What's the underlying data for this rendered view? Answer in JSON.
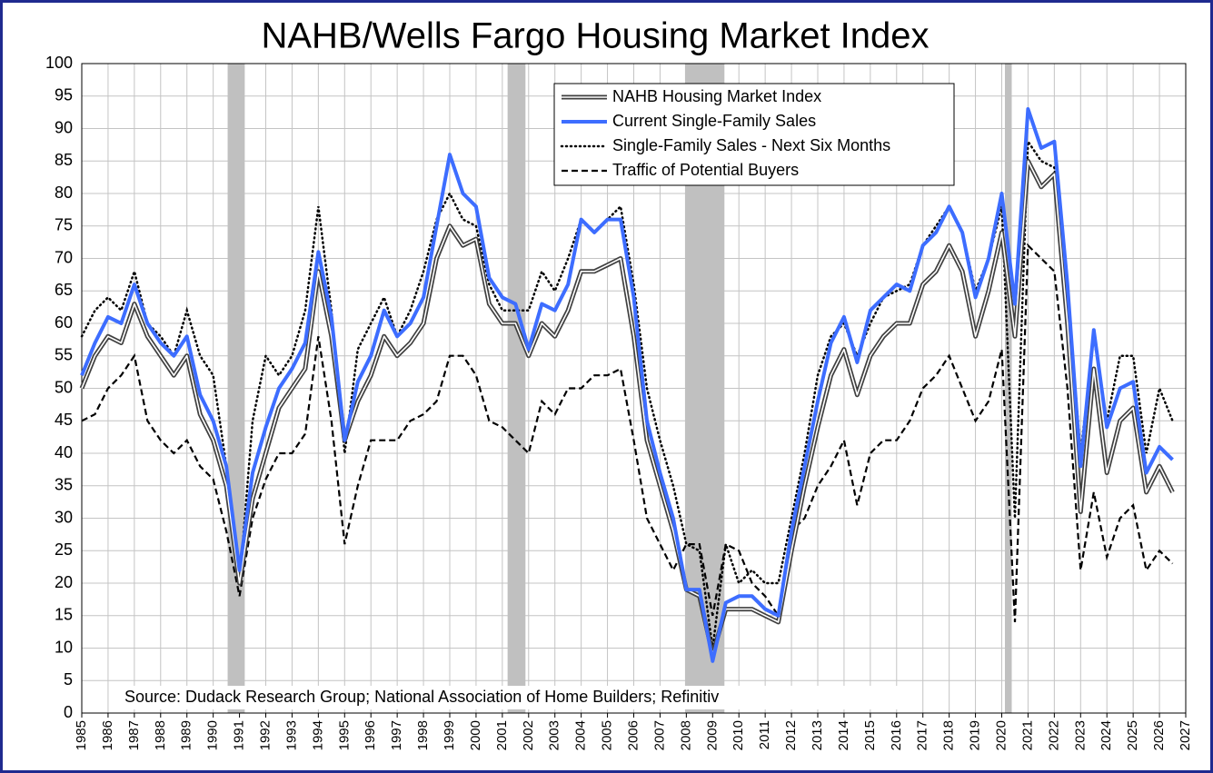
{
  "chart_data": {
    "type": "line",
    "title": "NAHB/Wells Fargo Housing Market Index",
    "annotation": "Source: Dudack Research Group; National Association of Home Builders; Refinitiv",
    "x": [
      1985,
      1985.5,
      1986,
      1986.5,
      1987,
      1987.5,
      1988,
      1988.5,
      1989,
      1989.5,
      1990,
      1990.5,
      1991,
      1991.5,
      1992,
      1992.5,
      1993,
      1993.5,
      1994,
      1994.5,
      1995,
      1995.5,
      1996,
      1996.5,
      1997,
      1997.5,
      1998,
      1998.5,
      1999,
      1999.5,
      2000,
      2000.5,
      2001,
      2001.5,
      2002,
      2002.5,
      2003,
      2003.5,
      2004,
      2004.5,
      2005,
      2005.5,
      2006,
      2006.5,
      2007,
      2007.5,
      2008,
      2008.5,
      2009,
      2009.5,
      2010,
      2010.5,
      2011,
      2011.5,
      2012,
      2012.5,
      2013,
      2013.5,
      2014,
      2014.5,
      2015,
      2015.5,
      2016,
      2016.5,
      2017,
      2017.5,
      2018,
      2018.5,
      2019,
      2019.5,
      2020,
      2020.5,
      2021,
      2021.5,
      2022,
      2022.5,
      2023,
      2023.5,
      2024,
      2024.5,
      2025,
      2025.5,
      2026,
      2026.5
    ],
    "series": [
      {
        "name": "NAHB Housing Market Index",
        "color": "#404040",
        "style": "double",
        "values": [
          50,
          55,
          58,
          57,
          63,
          58,
          55,
          52,
          55,
          46,
          42,
          35,
          20,
          33,
          40,
          47,
          50,
          53,
          68,
          58,
          42,
          48,
          52,
          58,
          55,
          57,
          60,
          70,
          75,
          72,
          73,
          63,
          60,
          60,
          55,
          60,
          58,
          62,
          68,
          68,
          69,
          70,
          58,
          42,
          35,
          28,
          19,
          18,
          9,
          16,
          16,
          16,
          15,
          14,
          25,
          35,
          44,
          52,
          56,
          49,
          55,
          58,
          60,
          60,
          66,
          68,
          72,
          68,
          58,
          65,
          74,
          58,
          85,
          81,
          83,
          60,
          31,
          53,
          37,
          45,
          47,
          34,
          38,
          34
        ]
      },
      {
        "name": "Current Single-Family Sales",
        "color": "#3d6dff",
        "style": "solid",
        "values": [
          52,
          57,
          61,
          60,
          66,
          60,
          57,
          55,
          58,
          49,
          45,
          38,
          22,
          37,
          44,
          50,
          53,
          57,
          71,
          61,
          42,
          51,
          55,
          62,
          58,
          60,
          64,
          75,
          86,
          80,
          78,
          67,
          64,
          63,
          56,
          63,
          62,
          66,
          76,
          74,
          76,
          76,
          64,
          45,
          37,
          30,
          19,
          19,
          8,
          17,
          18,
          18,
          16,
          15,
          28,
          38,
          48,
          57,
          61,
          54,
          62,
          64,
          66,
          65,
          72,
          74,
          78,
          74,
          64,
          70,
          80,
          63,
          93,
          87,
          88,
          66,
          38,
          59,
          44,
          50,
          51,
          37,
          41,
          39
        ]
      },
      {
        "name": "Single-Family Sales - Next Six Months",
        "color": "#000000",
        "style": "dotted",
        "values": [
          58,
          62,
          64,
          62,
          68,
          60,
          58,
          55,
          62,
          55,
          52,
          38,
          20,
          45,
          55,
          52,
          55,
          62,
          78,
          62,
          40,
          56,
          60,
          64,
          58,
          62,
          68,
          76,
          80,
          76,
          75,
          66,
          62,
          62,
          62,
          68,
          65,
          70,
          76,
          74,
          76,
          78,
          66,
          50,
          42,
          35,
          26,
          25,
          10,
          26,
          20,
          22,
          20,
          20,
          30,
          40,
          52,
          58,
          60,
          55,
          60,
          64,
          65,
          66,
          72,
          75,
          78,
          74,
          65,
          70,
          78,
          30,
          88,
          85,
          84,
          65,
          40,
          58,
          45,
          55,
          55,
          40,
          50,
          45
        ]
      },
      {
        "name": "Traffic of Potential Buyers",
        "color": "#000000",
        "style": "dashed",
        "values": [
          45,
          46,
          50,
          52,
          55,
          45,
          42,
          40,
          42,
          38,
          36,
          28,
          18,
          30,
          36,
          40,
          40,
          43,
          58,
          45,
          26,
          35,
          42,
          42,
          42,
          45,
          46,
          48,
          55,
          55,
          52,
          45,
          44,
          42,
          40,
          48,
          46,
          50,
          50,
          52,
          52,
          53,
          42,
          30,
          26,
          22,
          26,
          26,
          15,
          26,
          25,
          20,
          18,
          15,
          28,
          30,
          35,
          38,
          42,
          32,
          40,
          42,
          42,
          45,
          50,
          52,
          55,
          50,
          45,
          48,
          56,
          14,
          72,
          70,
          68,
          50,
          22,
          34,
          24,
          30,
          32,
          22,
          25,
          23
        ]
      }
    ],
    "shaded_periods": [
      [
        1990.55,
        1991.2
      ],
      [
        2001.2,
        2001.88
      ],
      [
        2007.95,
        2009.45
      ],
      [
        2020.12,
        2020.38
      ]
    ],
    "shade_color": "#c0c0c0",
    "xlim": [
      1985,
      2027
    ],
    "xticks": [
      1985,
      1986,
      1987,
      1988,
      1989,
      1990,
      1991,
      1992,
      1993,
      1994,
      1995,
      1996,
      1997,
      1998,
      1999,
      2000,
      2001,
      2002,
      2003,
      2004,
      2005,
      2006,
      2007,
      2008,
      2009,
      2010,
      2011,
      2012,
      2013,
      2014,
      2015,
      2016,
      2017,
      2018,
      2019,
      2020,
      2021,
      2022,
      2023,
      2024,
      2025,
      2026,
      2027
    ],
    "ylim": [
      0,
      100
    ],
    "yticks": [
      0,
      5,
      10,
      15,
      20,
      25,
      30,
      35,
      40,
      45,
      50,
      55,
      60,
      65,
      70,
      75,
      80,
      85,
      90,
      95,
      100
    ],
    "grid": true
  }
}
